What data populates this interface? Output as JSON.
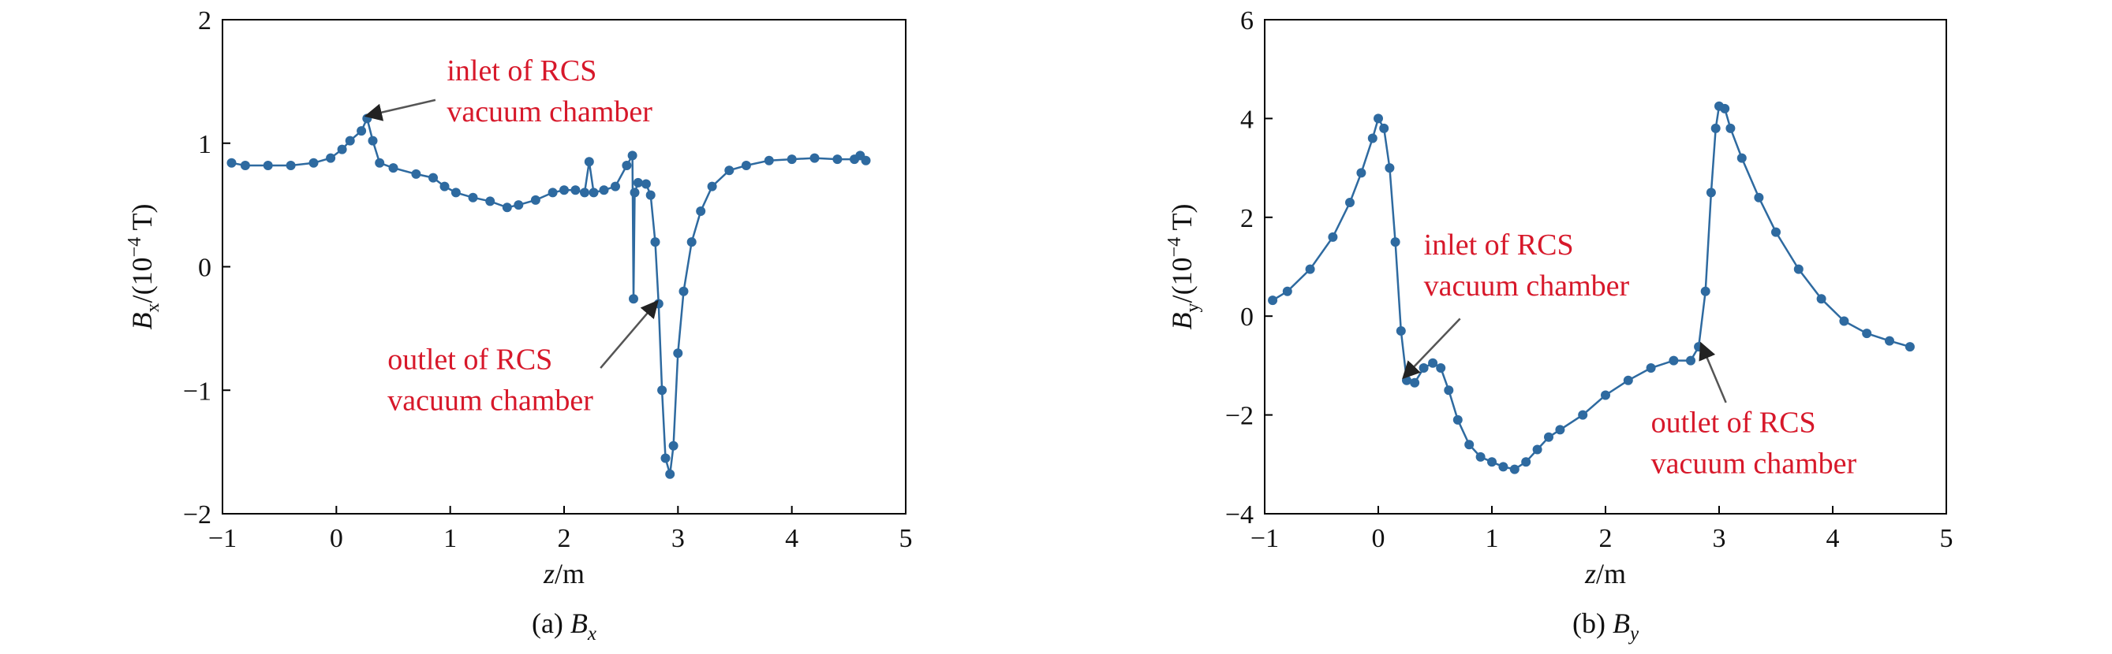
{
  "colors": {
    "series": "#2e6aa0",
    "annotation": "#d7182a",
    "arrow": "#555555",
    "axis": "#000000"
  },
  "chart_data": [
    {
      "type": "line",
      "caption": {
        "prefix": "(a) ",
        "symbol": "B",
        "subscript": "x"
      },
      "xlabel": {
        "var": "z",
        "unit": "/m"
      },
      "ylabel": {
        "var": "B",
        "sub": "x",
        "unit_pre": "/(10",
        "exp": "−4",
        "unit_post": " T)"
      },
      "xlim": [
        -1,
        5
      ],
      "ylim": [
        -2,
        2
      ],
      "xticks": [
        -1,
        0,
        1,
        2,
        3,
        4,
        5
      ],
      "xtick_labels": [
        "−1",
        "0",
        "1",
        "2",
        "3",
        "4",
        "5"
      ],
      "yticks": [
        -2,
        -1,
        0,
        1,
        2
      ],
      "ytick_labels": [
        "−2",
        "−1",
        "0",
        "1",
        "2"
      ],
      "grid": false,
      "series": [
        {
          "points": [
            [
              -0.92,
              0.84
            ],
            [
              -0.8,
              0.82
            ],
            [
              -0.6,
              0.82
            ],
            [
              -0.4,
              0.82
            ],
            [
              -0.2,
              0.84
            ],
            [
              -0.05,
              0.88
            ],
            [
              0.05,
              0.95
            ],
            [
              0.12,
              1.02
            ],
            [
              0.22,
              1.1
            ],
            [
              0.27,
              1.2
            ],
            [
              0.32,
              1.02
            ],
            [
              0.38,
              0.84
            ],
            [
              0.5,
              0.8
            ],
            [
              0.7,
              0.75
            ],
            [
              0.85,
              0.72
            ],
            [
              0.95,
              0.65
            ],
            [
              1.05,
              0.6
            ],
            [
              1.2,
              0.56
            ],
            [
              1.35,
              0.53
            ],
            [
              1.5,
              0.48
            ],
            [
              1.6,
              0.5
            ],
            [
              1.75,
              0.54
            ],
            [
              1.9,
              0.6
            ],
            [
              2.0,
              0.62
            ],
            [
              2.1,
              0.62
            ],
            [
              2.18,
              0.6
            ],
            [
              2.22,
              0.85
            ],
            [
              2.26,
              0.6
            ],
            [
              2.35,
              0.62
            ],
            [
              2.45,
              0.65
            ],
            [
              2.55,
              0.82
            ],
            [
              2.6,
              0.9
            ],
            [
              2.61,
              -0.26
            ],
            [
              2.62,
              0.6
            ],
            [
              2.65,
              0.68
            ],
            [
              2.72,
              0.67
            ],
            [
              2.76,
              0.58
            ],
            [
              2.8,
              0.2
            ],
            [
              2.83,
              -0.3
            ],
            [
              2.86,
              -1.0
            ],
            [
              2.89,
              -1.55
            ],
            [
              2.93,
              -1.68
            ],
            [
              2.96,
              -1.45
            ],
            [
              3.0,
              -0.7
            ],
            [
              3.05,
              -0.2
            ],
            [
              3.12,
              0.2
            ],
            [
              3.2,
              0.45
            ],
            [
              3.3,
              0.65
            ],
            [
              3.45,
              0.78
            ],
            [
              3.6,
              0.82
            ],
            [
              3.8,
              0.86
            ],
            [
              4.0,
              0.87
            ],
            [
              4.2,
              0.88
            ],
            [
              4.4,
              0.87
            ],
            [
              4.55,
              0.87
            ],
            [
              4.6,
              0.9
            ],
            [
              4.65,
              0.86
            ]
          ]
        }
      ],
      "annotations": [
        {
          "lines": [
            "inlet of RCS",
            "vacuum chamber"
          ],
          "text_at": [
            0.97,
            1.51
          ],
          "arrow_from": [
            0.87,
            1.35
          ],
          "arrow_to": [
            0.26,
            1.22
          ]
        },
        {
          "lines": [
            "outlet of RCS",
            "vacuum chamber"
          ],
          "text_at": [
            0.45,
            -0.83
          ],
          "arrow_from": [
            2.32,
            -0.82
          ],
          "arrow_to": [
            2.82,
            -0.28
          ]
        }
      ]
    },
    {
      "type": "line",
      "caption": {
        "prefix": "(b) ",
        "symbol": "B",
        "subscript": "y"
      },
      "xlabel": {
        "var": "z",
        "unit": "/m"
      },
      "ylabel": {
        "var": "B",
        "sub": "y",
        "unit_pre": "/(10",
        "exp": "−4",
        "unit_post": " T)"
      },
      "xlim": [
        -1,
        5
      ],
      "ylim": [
        -4,
        6
      ],
      "xticks": [
        -1,
        0,
        1,
        2,
        3,
        4,
        5
      ],
      "xtick_labels": [
        "−1",
        "0",
        "1",
        "2",
        "3",
        "4",
        "5"
      ],
      "yticks": [
        -4,
        -2,
        0,
        2,
        4,
        6
      ],
      "ytick_labels": [
        "−4",
        "−2",
        "0",
        "2",
        "4",
        "6"
      ],
      "grid": false,
      "series": [
        {
          "points": [
            [
              -0.93,
              0.32
            ],
            [
              -0.8,
              0.5
            ],
            [
              -0.6,
              0.95
            ],
            [
              -0.4,
              1.6
            ],
            [
              -0.25,
              2.3
            ],
            [
              -0.15,
              2.9
            ],
            [
              -0.05,
              3.6
            ],
            [
              0.0,
              4.0
            ],
            [
              0.05,
              3.8
            ],
            [
              0.1,
              3.0
            ],
            [
              0.15,
              1.5
            ],
            [
              0.2,
              -0.3
            ],
            [
              0.25,
              -1.3
            ],
            [
              0.32,
              -1.35
            ],
            [
              0.4,
              -1.05
            ],
            [
              0.48,
              -0.95
            ],
            [
              0.55,
              -1.05
            ],
            [
              0.62,
              -1.5
            ],
            [
              0.7,
              -2.1
            ],
            [
              0.8,
              -2.6
            ],
            [
              0.9,
              -2.85
            ],
            [
              1.0,
              -2.95
            ],
            [
              1.1,
              -3.05
            ],
            [
              1.2,
              -3.1
            ],
            [
              1.3,
              -2.95
            ],
            [
              1.4,
              -2.7
            ],
            [
              1.5,
              -2.45
            ],
            [
              1.6,
              -2.3
            ],
            [
              1.8,
              -2.0
            ],
            [
              2.0,
              -1.6
            ],
            [
              2.2,
              -1.3
            ],
            [
              2.4,
              -1.05
            ],
            [
              2.6,
              -0.9
            ],
            [
              2.75,
              -0.9
            ],
            [
              2.82,
              -0.62
            ],
            [
              2.88,
              0.5
            ],
            [
              2.93,
              2.5
            ],
            [
              2.97,
              3.8
            ],
            [
              3.0,
              4.25
            ],
            [
              3.05,
              4.2
            ],
            [
              3.1,
              3.8
            ],
            [
              3.2,
              3.2
            ],
            [
              3.35,
              2.4
            ],
            [
              3.5,
              1.7
            ],
            [
              3.7,
              0.95
            ],
            [
              3.9,
              0.35
            ],
            [
              4.1,
              -0.1
            ],
            [
              4.3,
              -0.35
            ],
            [
              4.5,
              -0.5
            ],
            [
              4.68,
              -0.62
            ]
          ]
        }
      ],
      "annotations": [
        {
          "lines": [
            "inlet of RCS",
            "vacuum chamber"
          ],
          "text_at": [
            0.4,
            1.25
          ],
          "arrow_from": [
            0.72,
            -0.05
          ],
          "arrow_to": [
            0.22,
            -1.25
          ]
        },
        {
          "lines": [
            "outlet of RCS",
            "vacuum chamber"
          ],
          "text_at": [
            2.4,
            -2.35
          ],
          "arrow_from": [
            3.06,
            -1.75
          ],
          "arrow_to": [
            2.84,
            -0.55
          ]
        }
      ]
    }
  ]
}
